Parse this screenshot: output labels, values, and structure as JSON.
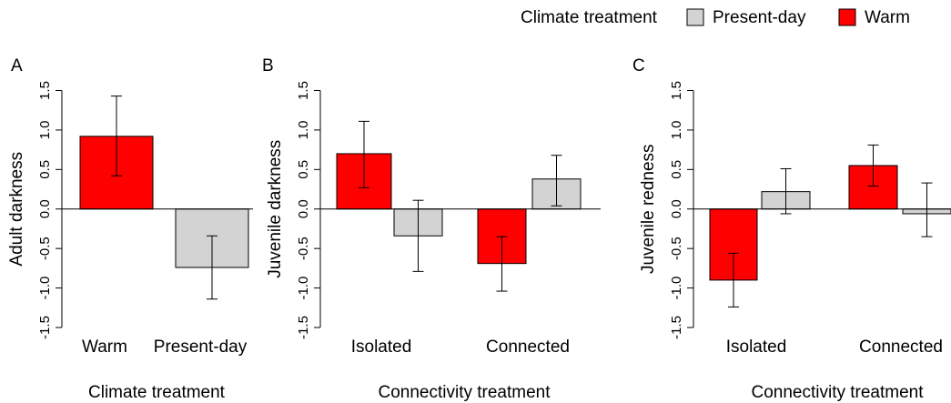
{
  "legend": {
    "title": "Climate treatment",
    "items": [
      {
        "label": "Present-day",
        "color": "#d3d3d3"
      },
      {
        "label": "Warm",
        "color": "#ff0000"
      }
    ]
  },
  "chart_data": [
    {
      "type": "bar",
      "panel": "A",
      "categories": [
        "Warm",
        "Present-day"
      ],
      "series": [
        {
          "values": [
            0.92,
            -0.74
          ],
          "errors": [
            [
              0.42,
              1.43
            ],
            [
              -1.14,
              -0.34
            ]
          ]
        }
      ],
      "colors": [
        "#ff0000",
        "#d3d3d3"
      ],
      "title": "",
      "xlabel": "Climate treatment",
      "ylabel": "Adult darkness",
      "ylim": [
        -1.5,
        1.5
      ],
      "yticks": [
        "-1.5",
        "-1.0",
        "-0.5",
        "0.0",
        "0.5",
        "1.0",
        "1.5"
      ],
      "grid": false
    },
    {
      "type": "bar",
      "panel": "B",
      "categories": [
        "Isolated",
        "Connected"
      ],
      "series": [
        {
          "name": "Warm",
          "values": [
            0.7,
            -0.69
          ],
          "errors": [
            [
              0.27,
              1.11
            ],
            [
              -1.04,
              -0.35
            ]
          ],
          "color": "#ff0000"
        },
        {
          "name": "Present-day",
          "values": [
            -0.34,
            0.38
          ],
          "errors": [
            [
              -0.79,
              0.11
            ],
            [
              0.04,
              0.68
            ]
          ],
          "color": "#d3d3d3"
        }
      ],
      "title": "",
      "xlabel": "Connectivity treatment",
      "ylabel": "Juvenile darkness",
      "ylim": [
        -1.5,
        1.5
      ],
      "yticks": [
        "-1.5",
        "-1.0",
        "-0.5",
        "0.0",
        "0.5",
        "1.0",
        "1.5"
      ],
      "grid": false
    },
    {
      "type": "bar",
      "panel": "C",
      "categories": [
        "Isolated",
        "Connected"
      ],
      "series": [
        {
          "name": "Warm",
          "values": [
            -0.9,
            0.55
          ],
          "errors": [
            [
              -1.24,
              -0.56
            ],
            [
              0.29,
              0.81
            ]
          ],
          "color": "#ff0000"
        },
        {
          "name": "Present-day",
          "values": [
            0.22,
            -0.06
          ],
          "errors": [
            [
              -0.06,
              0.51
            ],
            [
              -0.35,
              0.33
            ]
          ],
          "color": "#d3d3d3"
        }
      ],
      "title": "",
      "xlabel": "Connectivity treatment",
      "ylabel": "Juvenile redness",
      "ylim": [
        -1.5,
        1.5
      ],
      "yticks": [
        "-1.5",
        "-1.0",
        "-0.5",
        "0.0",
        "0.5",
        "1.0",
        "1.5"
      ],
      "grid": false
    }
  ]
}
